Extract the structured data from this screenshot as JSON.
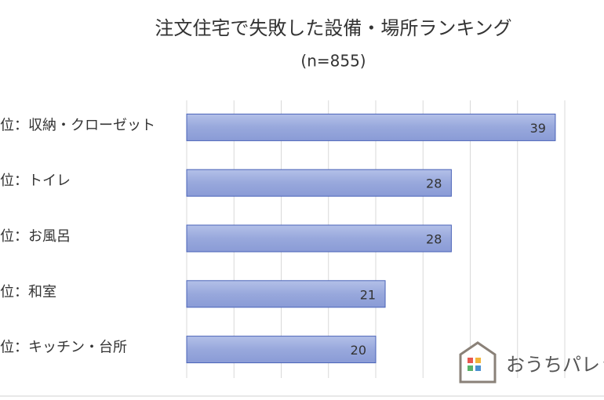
{
  "chart_data": {
    "type": "hbar",
    "title": "注文住宅で失敗した設備・場所ランキング",
    "subtitle": "(n=855)",
    "categories": [
      "位：収納・クローゼット",
      "位：トイレ",
      "位：お風呂",
      "位：和室",
      "位：キッチン・台所"
    ],
    "values": [
      39,
      28,
      28,
      21,
      20
    ],
    "color": "#98a8dc",
    "xlim": [
      0,
      40
    ],
    "xticks": [
      0,
      5,
      10,
      15,
      20,
      25,
      30,
      35,
      40
    ],
    "grid": true
  },
  "logo": {
    "text": "おうちパレッ"
  }
}
